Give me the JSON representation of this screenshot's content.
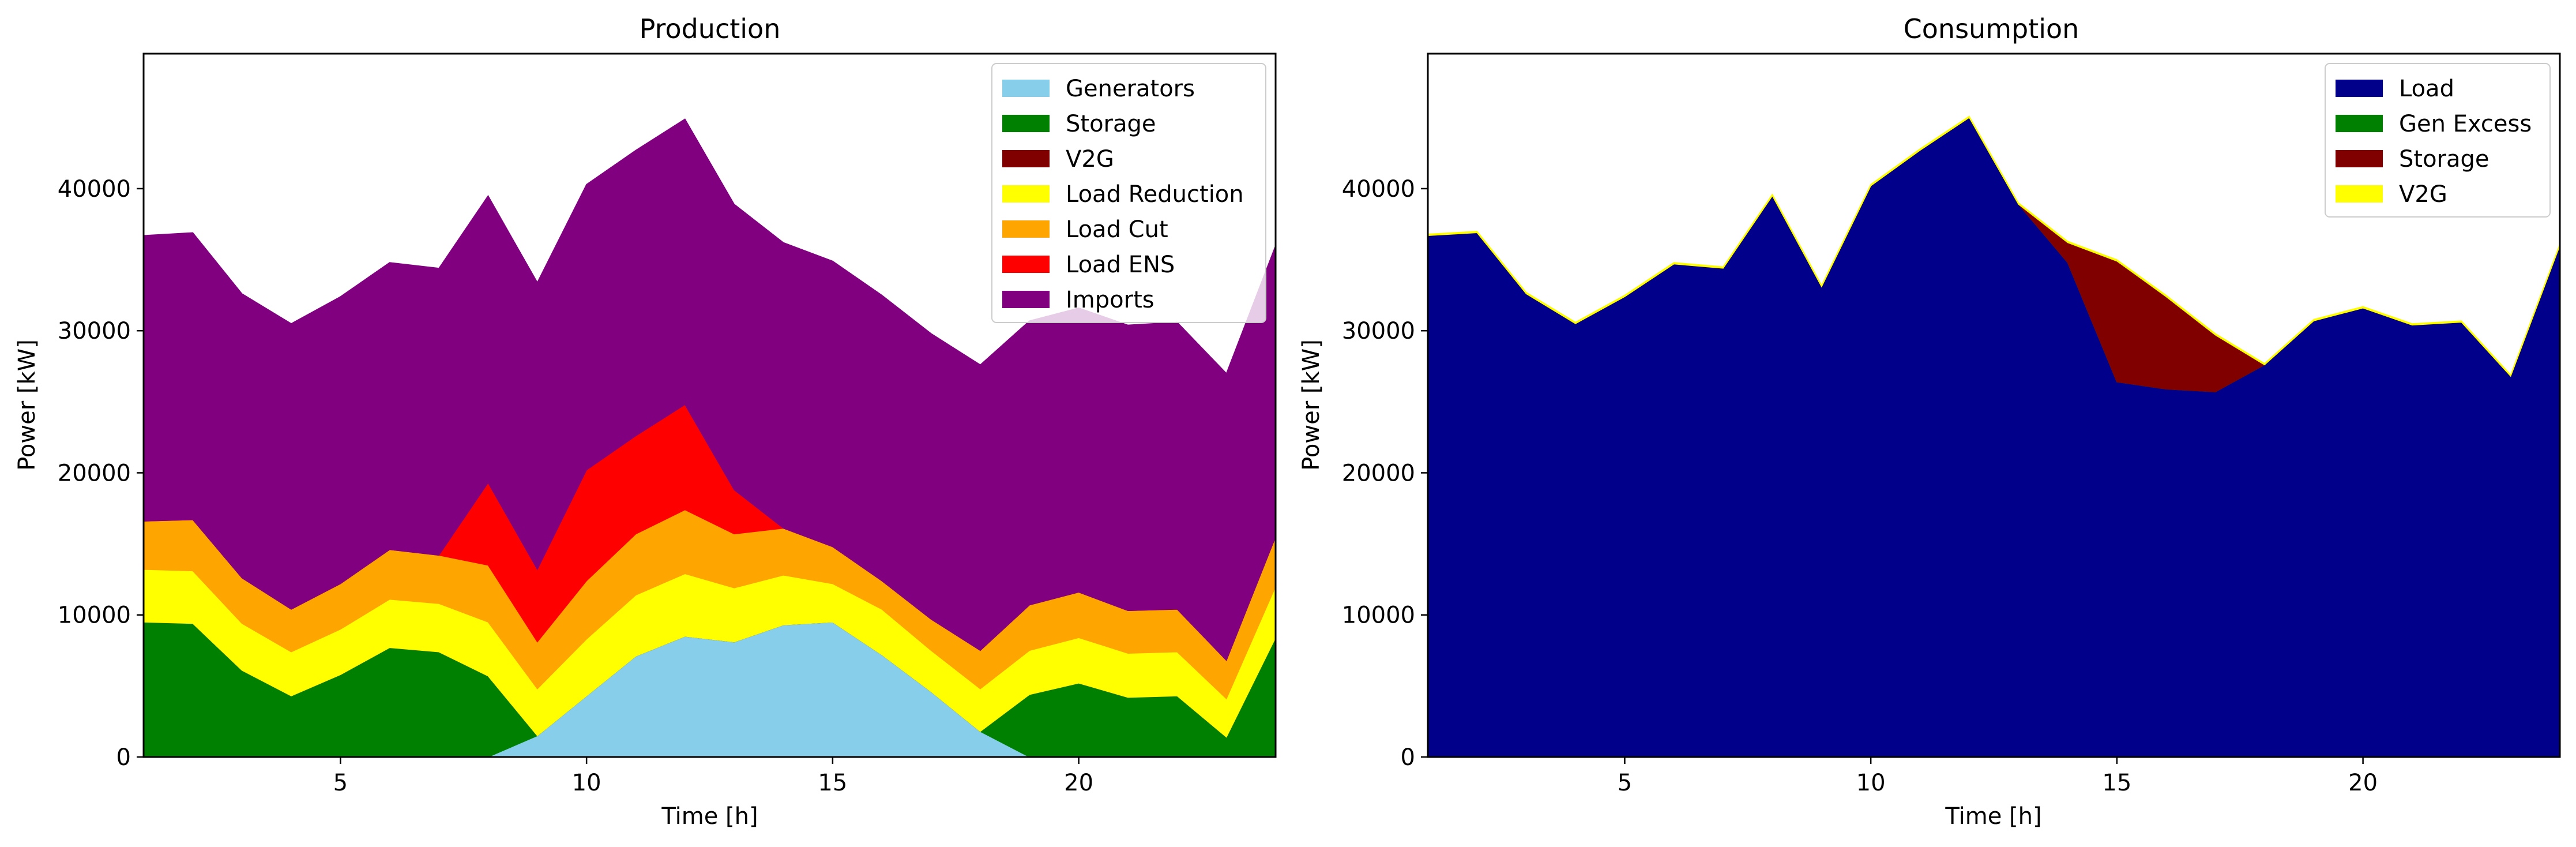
{
  "chart_data": [
    {
      "type": "area",
      "stacked": true,
      "title": "Production",
      "xlabel": "Time [h]",
      "ylabel": "Power [kW]",
      "xlim": [
        1,
        24
      ],
      "ylim": [
        0,
        49500
      ],
      "xticks": [
        "5",
        "10",
        "15",
        "20"
      ],
      "yticks": [
        "0",
        "10000",
        "20000",
        "30000",
        "40000"
      ],
      "legend_position": "top-right",
      "x": [
        1,
        2,
        3,
        4,
        5,
        6,
        7,
        8,
        9,
        10,
        11,
        12,
        13,
        14,
        15,
        16,
        17,
        18,
        19,
        20,
        21,
        22,
        23,
        24
      ],
      "series": [
        {
          "name": "Generators",
          "color": "#87ceeb",
          "values": [
            0,
            0,
            0,
            0,
            0,
            0,
            0,
            0,
            1500,
            4300,
            7100,
            8500,
            8100,
            9300,
            9500,
            7200,
            4600,
            1800,
            0,
            0,
            0,
            0,
            0,
            0
          ]
        },
        {
          "name": "Storage",
          "color": "#008000",
          "values": [
            9500,
            9400,
            6100,
            4300,
            5800,
            7700,
            7400,
            5700,
            0,
            0,
            0,
            0,
            0,
            0,
            0,
            0,
            0,
            0,
            4400,
            5200,
            4200,
            4300,
            1400,
            8400
          ]
        },
        {
          "name": "V2G",
          "color": "#800000",
          "values": [
            0,
            0,
            0,
            0,
            0,
            0,
            0,
            0,
            0,
            0,
            0,
            0,
            0,
            0,
            0,
            0,
            0,
            0,
            0,
            0,
            0,
            0,
            0,
            0
          ]
        },
        {
          "name": "Load Reduction",
          "color": "#ffff00",
          "values": [
            3700,
            3700,
            3300,
            3100,
            3200,
            3400,
            3400,
            3800,
            3300,
            4000,
            4300,
            4400,
            3800,
            3500,
            2700,
            3200,
            2900,
            3000,
            3100,
            3200,
            3100,
            3100,
            2700,
            3600
          ]
        },
        {
          "name": "Load Cut",
          "color": "#ffa500",
          "values": [
            3400,
            3600,
            3200,
            3000,
            3200,
            3500,
            3400,
            4000,
            3300,
            4100,
            4300,
            4500,
            3800,
            3300,
            2600,
            2000,
            2200,
            2700,
            3200,
            3200,
            3000,
            3000,
            2700,
            3500
          ]
        },
        {
          "name": "Load ENS",
          "color": "#ff0000",
          "values": [
            0,
            0,
            0,
            0,
            0,
            0,
            0,
            5800,
            5100,
            7800,
            6900,
            7400,
            3100,
            0,
            0,
            0,
            0,
            0,
            0,
            0,
            0,
            0,
            0,
            0
          ]
        },
        {
          "name": "Imports",
          "color": "#800080",
          "values": [
            20100,
            20200,
            20000,
            20100,
            20200,
            20200,
            20200,
            20200,
            20200,
            20100,
            20100,
            20100,
            20100,
            20100,
            20100,
            20100,
            20100,
            20100,
            20000,
            20000,
            20100,
            20200,
            20200,
            20500
          ]
        }
      ]
    },
    {
      "type": "area",
      "stacked": true,
      "title": "Consumption",
      "xlabel": "Time [h]",
      "ylabel": "Power [kW]",
      "xlim": [
        1,
        24
      ],
      "ylim": [
        0,
        49500
      ],
      "xticks": [
        "5",
        "10",
        "15",
        "20"
      ],
      "yticks": [
        "0",
        "10000",
        "20000",
        "30000",
        "40000"
      ],
      "legend_position": "top-right",
      "x": [
        1,
        2,
        3,
        4,
        5,
        6,
        7,
        8,
        9,
        10,
        11,
        12,
        13,
        14,
        15,
        16,
        17,
        18,
        19,
        20,
        21,
        22,
        23,
        24
      ],
      "series": [
        {
          "name": "Load",
          "color": "#00008b",
          "values": [
            36700,
            36900,
            32600,
            30500,
            32400,
            34700,
            34400,
            39500,
            33100,
            40200,
            42700,
            45000,
            38900,
            34800,
            26400,
            25900,
            25700,
            27600,
            30700,
            31600,
            30400,
            30600,
            26800,
            36000
          ]
        },
        {
          "name": "Gen Excess",
          "color": "#008000",
          "values": [
            0,
            0,
            0,
            0,
            0,
            0,
            0,
            0,
            0,
            0,
            0,
            0,
            0,
            0,
            0,
            0,
            0,
            0,
            0,
            0,
            0,
            0,
            0,
            0
          ]
        },
        {
          "name": "Storage",
          "color": "#800000",
          "values": [
            0,
            0,
            0,
            0,
            0,
            0,
            0,
            0,
            0,
            0,
            0,
            0,
            0,
            1400,
            8500,
            6500,
            4000,
            0,
            0,
            0,
            0,
            0,
            0,
            0
          ]
        },
        {
          "name": "V2G",
          "color": "#ffff00",
          "values": [
            100,
            100,
            100,
            100,
            100,
            100,
            100,
            100,
            100,
            100,
            100,
            100,
            100,
            100,
            100,
            100,
            100,
            100,
            100,
            100,
            100,
            100,
            100,
            100
          ]
        }
      ]
    }
  ]
}
